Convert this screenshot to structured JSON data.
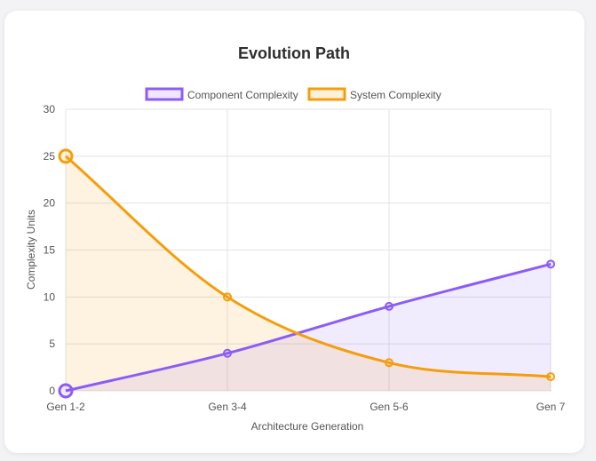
{
  "chart_data": {
    "type": "line",
    "title": "Evolution Path",
    "xlabel": "Architecture Generation",
    "ylabel": "Complexity Units",
    "categories": [
      "Gen 1-2",
      "Gen 3-4",
      "Gen 5-6",
      "Gen 7"
    ],
    "ylim": [
      0,
      30
    ],
    "yticks": [
      0,
      5,
      10,
      15,
      20,
      25,
      30
    ],
    "grid": true,
    "legend_position": "top",
    "series": [
      {
        "name": "Component Complexity",
        "values": [
          0,
          4,
          9,
          13.5
        ],
        "color": "#8b5cf6",
        "fill": "rgba(139,92,246,0.12)"
      },
      {
        "name": "System Complexity",
        "values": [
          25,
          10,
          3,
          1.5
        ],
        "color": "#f59e0b",
        "fill": "rgba(245,158,11,0.12)"
      }
    ]
  }
}
